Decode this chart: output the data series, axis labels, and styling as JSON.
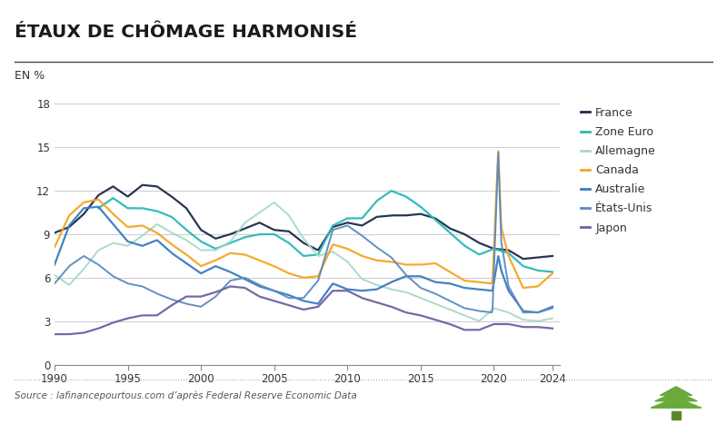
{
  "title": "ÉTAUX DE CHÔMAGE HARMONISÉ",
  "ylabel": "EN %",
  "source": "Source : lafinancepourtous.com d’après Federal Reserve Economic Data",
  "ylim": [
    0,
    18
  ],
  "yticks": [
    0,
    3,
    6,
    9,
    12,
    15,
    18
  ],
  "xlim": [
    1990,
    2024.5
  ],
  "xticks": [
    1990,
    1995,
    2000,
    2005,
    2010,
    2015,
    2020,
    2024
  ],
  "background": "#ffffff",
  "series": {
    "France": {
      "color": "#1c2b4a",
      "linewidth": 1.6,
      "data_x": [
        1990,
        1991,
        1992,
        1993,
        1994,
        1995,
        1996,
        1997,
        1998,
        1999,
        2000,
        2001,
        2002,
        2003,
        2004,
        2005,
        2006,
        2007,
        2008,
        2009,
        2010,
        2011,
        2012,
        2013,
        2014,
        2015,
        2016,
        2017,
        2018,
        2019,
        2020,
        2021,
        2022,
        2023,
        2024
      ],
      "data_y": [
        9.1,
        9.5,
        10.4,
        11.7,
        12.3,
        11.6,
        12.4,
        12.3,
        11.6,
        10.8,
        9.3,
        8.7,
        9.0,
        9.4,
        9.8,
        9.3,
        9.2,
        8.4,
        7.9,
        9.5,
        9.8,
        9.6,
        10.2,
        10.3,
        10.3,
        10.4,
        10.1,
        9.4,
        9.0,
        8.4,
        8.0,
        7.9,
        7.3,
        7.4,
        7.5
      ]
    },
    "Zone Euro": {
      "color": "#2ab8b8",
      "linewidth": 1.6,
      "data_x": [
        1993,
        1994,
        1995,
        1996,
        1997,
        1998,
        1999,
        2000,
        2001,
        2002,
        2003,
        2004,
        2005,
        2006,
        2007,
        2008,
        2009,
        2010,
        2011,
        2012,
        2013,
        2014,
        2015,
        2016,
        2017,
        2018,
        2019,
        2020,
        2021,
        2022,
        2023,
        2024
      ],
      "data_y": [
        10.8,
        11.5,
        10.8,
        10.8,
        10.6,
        10.2,
        9.3,
        8.5,
        8.0,
        8.4,
        8.8,
        9.0,
        9.0,
        8.4,
        7.5,
        7.6,
        9.6,
        10.1,
        10.1,
        11.3,
        12.0,
        11.6,
        10.9,
        10.0,
        9.1,
        8.2,
        7.6,
        8.0,
        7.7,
        6.8,
        6.5,
        6.4
      ]
    },
    "Allemagne": {
      "color": "#a8d8c8",
      "linewidth": 1.4,
      "data_x": [
        1990,
        1991,
        1992,
        1993,
        1994,
        1995,
        1996,
        1997,
        1998,
        1999,
        2000,
        2001,
        2002,
        2003,
        2004,
        2005,
        2006,
        2007,
        2008,
        2009,
        2010,
        2011,
        2012,
        2013,
        2014,
        2015,
        2016,
        2017,
        2018,
        2019,
        2020,
        2021,
        2022,
        2023,
        2024
      ],
      "data_y": [
        6.2,
        5.5,
        6.6,
        7.9,
        8.4,
        8.2,
        8.9,
        9.7,
        9.1,
        8.6,
        7.9,
        7.9,
        8.5,
        9.8,
        10.5,
        11.2,
        10.3,
        8.7,
        7.5,
        7.8,
        7.1,
        5.9,
        5.5,
        5.2,
        5.0,
        4.6,
        4.2,
        3.8,
        3.4,
        3.0,
        3.9,
        3.6,
        3.1,
        3.0,
        3.2
      ]
    },
    "Canada": {
      "color": "#f5a623",
      "linewidth": 1.6,
      "data_x": [
        1990,
        1991,
        1992,
        1993,
        1994,
        1995,
        1996,
        1997,
        1998,
        1999,
        2000,
        2001,
        2002,
        2003,
        2004,
        2005,
        2006,
        2007,
        2008,
        2009,
        2010,
        2011,
        2012,
        2013,
        2014,
        2015,
        2016,
        2017,
        2018,
        2019,
        2019.9,
        2020.3,
        2020.5,
        2021,
        2022,
        2023,
        2024
      ],
      "data_y": [
        8.1,
        10.3,
        11.2,
        11.4,
        10.4,
        9.5,
        9.6,
        9.1,
        8.3,
        7.6,
        6.8,
        7.2,
        7.7,
        7.6,
        7.2,
        6.8,
        6.3,
        6.0,
        6.1,
        8.3,
        8.0,
        7.5,
        7.2,
        7.1,
        6.9,
        6.9,
        7.0,
        6.4,
        5.8,
        5.7,
        5.6,
        14.8,
        9.5,
        7.5,
        5.3,
        5.4,
        6.3
      ]
    },
    "Australie": {
      "color": "#3a7bbf",
      "linewidth": 1.6,
      "data_x": [
        1990,
        1991,
        1992,
        1993,
        1994,
        1995,
        1996,
        1997,
        1998,
        1999,
        2000,
        2001,
        2002,
        2003,
        2004,
        2005,
        2006,
        2007,
        2008,
        2009,
        2010,
        2011,
        2012,
        2013,
        2014,
        2015,
        2016,
        2017,
        2018,
        2019,
        2019.9,
        2020.3,
        2020.5,
        2021,
        2022,
        2023,
        2024
      ],
      "data_y": [
        6.9,
        9.6,
        10.8,
        10.9,
        9.7,
        8.5,
        8.2,
        8.6,
        7.7,
        7.0,
        6.3,
        6.8,
        6.4,
        5.9,
        5.4,
        5.1,
        4.8,
        4.4,
        4.2,
        5.6,
        5.2,
        5.1,
        5.2,
        5.7,
        6.1,
        6.1,
        5.7,
        5.6,
        5.3,
        5.2,
        5.1,
        7.5,
        6.5,
        5.1,
        3.7,
        3.6,
        4.0
      ]
    },
    "États-Unis": {
      "color": "#5b8abf",
      "linewidth": 1.4,
      "data_x": [
        1990,
        1991,
        1992,
        1993,
        1994,
        1995,
        1996,
        1997,
        1998,
        1999,
        2000,
        2001,
        2002,
        2003,
        2004,
        2005,
        2006,
        2007,
        2008,
        2009,
        2010,
        2011,
        2012,
        2013,
        2014,
        2015,
        2016,
        2017,
        2018,
        2019,
        2019.9,
        2020.3,
        2020.5,
        2021,
        2022,
        2023,
        2024
      ],
      "data_y": [
        5.6,
        6.8,
        7.5,
        6.9,
        6.1,
        5.6,
        5.4,
        4.9,
        4.5,
        4.2,
        4.0,
        4.7,
        5.8,
        6.0,
        5.5,
        5.1,
        4.6,
        4.6,
        5.8,
        9.3,
        9.6,
        8.9,
        8.1,
        7.4,
        6.2,
        5.3,
        4.9,
        4.4,
        3.9,
        3.7,
        3.6,
        14.7,
        8.5,
        5.4,
        3.6,
        3.6,
        3.9
      ]
    },
    "Japon": {
      "color": "#7060a0",
      "linewidth": 1.6,
      "data_x": [
        1990,
        1991,
        1992,
        1993,
        1994,
        1995,
        1996,
        1997,
        1998,
        1999,
        2000,
        2001,
        2002,
        2003,
        2004,
        2005,
        2006,
        2007,
        2008,
        2009,
        2010,
        2011,
        2012,
        2013,
        2014,
        2015,
        2016,
        2017,
        2018,
        2019,
        2020,
        2021,
        2022,
        2023,
        2024
      ],
      "data_y": [
        2.1,
        2.1,
        2.2,
        2.5,
        2.9,
        3.2,
        3.4,
        3.4,
        4.1,
        4.7,
        4.7,
        5.0,
        5.4,
        5.3,
        4.7,
        4.4,
        4.1,
        3.8,
        4.0,
        5.1,
        5.1,
        4.6,
        4.3,
        4.0,
        3.6,
        3.4,
        3.1,
        2.8,
        2.4,
        2.4,
        2.8,
        2.8,
        2.6,
        2.6,
        2.5
      ]
    }
  },
  "legend_order": [
    "France",
    "Zone Euro",
    "Allemagne",
    "Canada",
    "Australie",
    "États-Unis",
    "Japon"
  ]
}
